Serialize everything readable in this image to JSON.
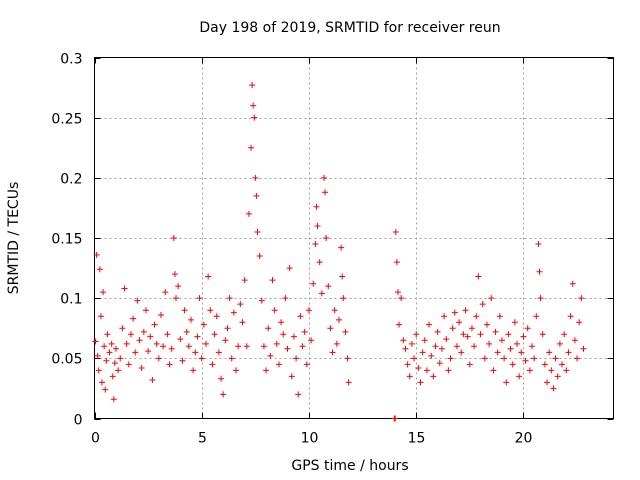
{
  "chart_data": {
    "type": "scatter",
    "title": "Day 198 of 2019, SRMTID for receiver reun",
    "xlabel": "GPS time / hours",
    "ylabel": "SRMTID / TECUs",
    "xlim": [
      0,
      24.2
    ],
    "ylim": [
      0,
      0.3
    ],
    "xticks": [
      0,
      5,
      10,
      15,
      20
    ],
    "xtick_labels": [
      "0",
      "5",
      "10",
      "15",
      "20"
    ],
    "yticks": [
      0,
      0.05,
      0.1,
      0.15,
      0.2,
      0.25,
      0.3
    ],
    "ytick_labels": [
      "0",
      "0.05",
      "0.1",
      "0.15",
      "0.2",
      "0.25",
      "0.3"
    ],
    "grid": true,
    "marker": "+",
    "color": "#ff0000",
    "series": [
      {
        "name": "SRMTID",
        "points": [
          [
            0.05,
            0.064
          ],
          [
            0.1,
            0.136
          ],
          [
            0.15,
            0.052
          ],
          [
            0.2,
            0.04
          ],
          [
            0.25,
            0.124
          ],
          [
            0.3,
            0.085
          ],
          [
            0.35,
            0.03
          ],
          [
            0.4,
            0.105
          ],
          [
            0.45,
            0.06
          ],
          [
            0.5,
            0.024
          ],
          [
            0.55,
            0.048
          ],
          [
            0.6,
            0.07
          ],
          [
            0.7,
            0.055
          ],
          [
            0.8,
            0.062
          ],
          [
            0.85,
            0.035
          ],
          [
            0.9,
            0.016
          ],
          [
            0.95,
            0.046
          ],
          [
            1.0,
            0.058
          ],
          [
            1.1,
            0.04
          ],
          [
            1.2,
            0.05
          ],
          [
            1.3,
            0.075
          ],
          [
            1.4,
            0.108
          ],
          [
            1.5,
            0.062
          ],
          [
            1.6,
            0.045
          ],
          [
            1.7,
            0.07
          ],
          [
            1.8,
            0.083
          ],
          [
            1.9,
            0.055
          ],
          [
            2.0,
            0.098
          ],
          [
            2.1,
            0.065
          ],
          [
            2.2,
            0.042
          ],
          [
            2.3,
            0.072
          ],
          [
            2.4,
            0.09
          ],
          [
            2.5,
            0.056
          ],
          [
            2.6,
            0.068
          ],
          [
            2.7,
            0.032
          ],
          [
            2.8,
            0.078
          ],
          [
            2.9,
            0.062
          ],
          [
            3.0,
            0.05
          ],
          [
            3.1,
            0.086
          ],
          [
            3.2,
            0.06
          ],
          [
            3.3,
            0.105
          ],
          [
            3.4,
            0.07
          ],
          [
            3.5,
            0.045
          ],
          [
            3.6,
            0.058
          ],
          [
            3.7,
            0.15
          ],
          [
            3.75,
            0.12
          ],
          [
            3.8,
            0.1
          ],
          [
            3.9,
            0.11
          ],
          [
            4.0,
            0.066
          ],
          [
            4.1,
            0.048
          ],
          [
            4.2,
            0.09
          ],
          [
            4.3,
            0.072
          ],
          [
            4.4,
            0.06
          ],
          [
            4.5,
            0.082
          ],
          [
            4.6,
            0.04
          ],
          [
            4.7,
            0.055
          ],
          [
            4.8,
            0.068
          ],
          [
            4.9,
            0.1
          ],
          [
            5.0,
            0.05
          ],
          [
            5.1,
            0.078
          ],
          [
            5.2,
            0.062
          ],
          [
            5.3,
            0.118
          ],
          [
            5.4,
            0.09
          ],
          [
            5.5,
            0.045
          ],
          [
            5.6,
            0.07
          ],
          [
            5.7,
            0.085
          ],
          [
            5.8,
            0.055
          ],
          [
            5.9,
            0.033
          ],
          [
            6.0,
            0.02
          ],
          [
            6.1,
            0.065
          ],
          [
            6.2,
            0.075
          ],
          [
            6.3,
            0.1
          ],
          [
            6.4,
            0.05
          ],
          [
            6.5,
            0.088
          ],
          [
            6.6,
            0.04
          ],
          [
            6.7,
            0.06
          ],
          [
            6.8,
            0.095
          ],
          [
            6.9,
            0.08
          ],
          [
            7.0,
            0.115
          ],
          [
            7.1,
            0.06
          ],
          [
            7.2,
            0.17
          ],
          [
            7.3,
            0.225
          ],
          [
            7.35,
            0.277
          ],
          [
            7.4,
            0.26
          ],
          [
            7.45,
            0.25
          ],
          [
            7.5,
            0.2
          ],
          [
            7.55,
            0.185
          ],
          [
            7.6,
            0.155
          ],
          [
            7.7,
            0.135
          ],
          [
            7.8,
            0.098
          ],
          [
            7.9,
            0.06
          ],
          [
            8.0,
            0.04
          ],
          [
            8.1,
            0.075
          ],
          [
            8.2,
            0.052
          ],
          [
            8.3,
            0.115
          ],
          [
            8.4,
            0.09
          ],
          [
            8.5,
            0.062
          ],
          [
            8.6,
            0.045
          ],
          [
            8.7,
            0.08
          ],
          [
            8.8,
            0.07
          ],
          [
            8.9,
            0.1
          ],
          [
            9.0,
            0.058
          ],
          [
            9.1,
            0.125
          ],
          [
            9.2,
            0.035
          ],
          [
            9.3,
            0.068
          ],
          [
            9.4,
            0.05
          ],
          [
            9.5,
            0.02
          ],
          [
            9.6,
            0.085
          ],
          [
            9.7,
            0.06
          ],
          [
            9.8,
            0.072
          ],
          [
            9.9,
            0.045
          ],
          [
            10.0,
            0.09
          ],
          [
            10.1,
            0.065
          ],
          [
            10.2,
            0.112
          ],
          [
            10.3,
            0.145
          ],
          [
            10.35,
            0.176
          ],
          [
            10.4,
            0.16
          ],
          [
            10.5,
            0.13
          ],
          [
            10.6,
            0.104
          ],
          [
            10.7,
            0.2
          ],
          [
            10.75,
            0.188
          ],
          [
            10.8,
            0.15
          ],
          [
            10.9,
            0.11
          ],
          [
            11.0,
            0.075
          ],
          [
            11.1,
            0.055
          ],
          [
            11.2,
            0.09
          ],
          [
            11.3,
            0.062
          ],
          [
            11.4,
            0.082
          ],
          [
            11.5,
            0.142
          ],
          [
            11.55,
            0.118
          ],
          [
            11.6,
            0.1
          ],
          [
            11.7,
            0.072
          ],
          [
            11.8,
            0.05
          ],
          [
            11.85,
            0.03
          ],
          [
            13.98,
            0.0
          ],
          [
            14.02,
            0.0
          ],
          [
            14.05,
            0.155
          ],
          [
            14.1,
            0.13
          ],
          [
            14.15,
            0.105
          ],
          [
            14.2,
            0.078
          ],
          [
            14.3,
            0.1
          ],
          [
            14.4,
            0.065
          ],
          [
            14.5,
            0.058
          ],
          [
            14.6,
            0.045
          ],
          [
            14.7,
            0.035
          ],
          [
            14.8,
            0.062
          ],
          [
            14.9,
            0.05
          ],
          [
            15.0,
            0.07
          ],
          [
            15.1,
            0.042
          ],
          [
            15.2,
            0.03
          ],
          [
            15.3,
            0.055
          ],
          [
            15.4,
            0.065
          ],
          [
            15.5,
            0.04
          ],
          [
            15.6,
            0.078
          ],
          [
            15.7,
            0.052
          ],
          [
            15.8,
            0.035
          ],
          [
            15.9,
            0.06
          ],
          [
            16.0,
            0.072
          ],
          [
            16.1,
            0.046
          ],
          [
            16.2,
            0.058
          ],
          [
            16.3,
            0.085
          ],
          [
            16.4,
            0.066
          ],
          [
            16.5,
            0.04
          ],
          [
            16.6,
            0.05
          ],
          [
            16.7,
            0.075
          ],
          [
            16.8,
            0.088
          ],
          [
            16.9,
            0.06
          ],
          [
            17.0,
            0.08
          ],
          [
            17.1,
            0.055
          ],
          [
            17.2,
            0.07
          ],
          [
            17.3,
            0.09
          ],
          [
            17.4,
            0.068
          ],
          [
            17.5,
            0.045
          ],
          [
            17.6,
            0.075
          ],
          [
            17.7,
            0.06
          ],
          [
            17.8,
            0.085
          ],
          [
            17.9,
            0.118
          ],
          [
            18.0,
            0.07
          ],
          [
            18.1,
            0.095
          ],
          [
            18.2,
            0.05
          ],
          [
            18.3,
            0.078
          ],
          [
            18.4,
            0.062
          ],
          [
            18.5,
            0.1
          ],
          [
            18.6,
            0.04
          ],
          [
            18.7,
            0.072
          ],
          [
            18.8,
            0.055
          ],
          [
            18.9,
            0.085
          ],
          [
            19.0,
            0.065
          ],
          [
            19.1,
            0.05
          ],
          [
            19.2,
            0.03
          ],
          [
            19.3,
            0.07
          ],
          [
            19.4,
            0.058
          ],
          [
            19.5,
            0.045
          ],
          [
            19.6,
            0.08
          ],
          [
            19.7,
            0.062
          ],
          [
            19.8,
            0.035
          ],
          [
            19.9,
            0.055
          ],
          [
            20.0,
            0.068
          ],
          [
            20.1,
            0.048
          ],
          [
            20.2,
            0.075
          ],
          [
            20.3,
            0.04
          ],
          [
            20.4,
            0.06
          ],
          [
            20.5,
            0.05
          ],
          [
            20.6,
            0.085
          ],
          [
            20.7,
            0.145
          ],
          [
            20.75,
            0.122
          ],
          [
            20.8,
            0.1
          ],
          [
            20.9,
            0.07
          ],
          [
            21.0,
            0.045
          ],
          [
            21.1,
            0.03
          ],
          [
            21.2,
            0.055
          ],
          [
            21.3,
            0.04
          ],
          [
            21.4,
            0.025
          ],
          [
            21.5,
            0.05
          ],
          [
            21.6,
            0.035
          ],
          [
            21.7,
            0.062
          ],
          [
            21.8,
            0.045
          ],
          [
            21.9,
            0.07
          ],
          [
            22.0,
            0.04
          ],
          [
            22.1,
            0.055
          ],
          [
            22.2,
            0.085
          ],
          [
            22.3,
            0.112
          ],
          [
            22.4,
            0.065
          ],
          [
            22.5,
            0.05
          ],
          [
            22.6,
            0.08
          ],
          [
            22.7,
            0.1
          ],
          [
            22.8,
            0.058
          ]
        ]
      }
    ]
  }
}
